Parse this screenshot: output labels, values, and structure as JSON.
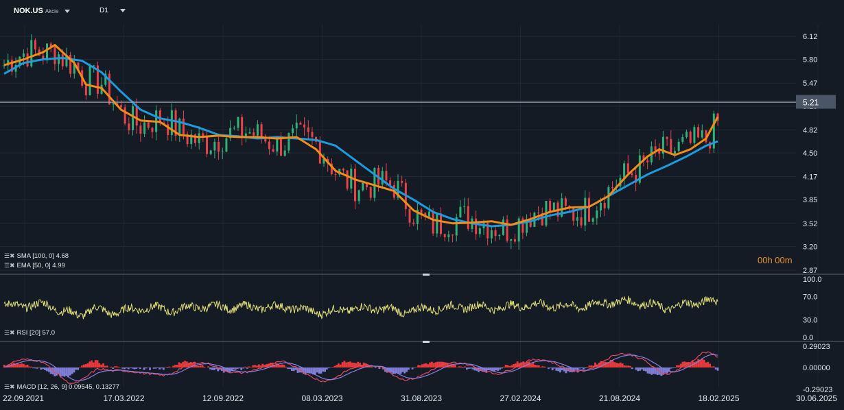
{
  "header": {
    "symbol": "NOK.US",
    "type": "Akcie",
    "timeframe": "D1"
  },
  "current_price_label": "5.21",
  "timer": "00h 00m",
  "colors": {
    "background": "#141b24",
    "sma": "#1e9be0",
    "ema": "#f08c1a",
    "rsi": "#e3e07a",
    "macd_hist_pos": "#e83a3a",
    "macd_hist_neg": "#7e7ed6",
    "up_candle": "#33b07a",
    "down_candle": "#e8434a"
  },
  "indicators": {
    "sma_label": "SMA [100,  0]  4.68",
    "ema_label": "EMA [50,  0]  4.99",
    "rsi_label": "RSI [20]  57.0",
    "macd_label": "MACD [12,  26,  9]  0.09545,  0.13277"
  },
  "chart_data": [
    {
      "type": "candlestick",
      "title": "NOK.US",
      "x_tick_labels": [
        "22.09.2021",
        "17.03.2022",
        "12.09.2022",
        "08.03.2023",
        "31.08.2023",
        "27.02.2024",
        "21.08.2024",
        "18.02.2025",
        "30.06.2025"
      ],
      "y_tick_labels": [
        "6.12",
        "5.80",
        "5.47",
        "5.15",
        "4.82",
        "4.50",
        "4.17",
        "3.85",
        "3.52",
        "3.20",
        "2.87"
      ],
      "ylim": [
        2.87,
        6.4
      ],
      "last_price": 5.21,
      "sma_100": [
        [
          0,
          5.6
        ],
        [
          5,
          5.75
        ],
        [
          10,
          5.8
        ],
        [
          15,
          5.82
        ],
        [
          20,
          5.78
        ],
        [
          25,
          5.62
        ],
        [
          30,
          5.35
        ],
        [
          35,
          5.1
        ],
        [
          40,
          4.98
        ],
        [
          45,
          4.93
        ],
        [
          50,
          4.85
        ],
        [
          55,
          4.75
        ],
        [
          60,
          4.73
        ],
        [
          65,
          4.7
        ],
        [
          70,
          4.72
        ],
        [
          75,
          4.7
        ],
        [
          80,
          4.68
        ],
        [
          85,
          4.6
        ],
        [
          90,
          4.4
        ],
        [
          95,
          4.2
        ],
        [
          100,
          4.0
        ],
        [
          105,
          3.85
        ],
        [
          110,
          3.68
        ],
        [
          115,
          3.58
        ],
        [
          120,
          3.52
        ],
        [
          125,
          3.48
        ],
        [
          130,
          3.5
        ],
        [
          135,
          3.55
        ],
        [
          140,
          3.63
        ],
        [
          145,
          3.68
        ],
        [
          150,
          3.75
        ],
        [
          155,
          3.9
        ],
        [
          160,
          4.05
        ],
        [
          165,
          4.2
        ],
        [
          170,
          4.32
        ],
        [
          175,
          4.45
        ],
        [
          180,
          4.6
        ],
        [
          183,
          4.66
        ]
      ],
      "ema_50": [
        [
          0,
          5.72
        ],
        [
          5,
          5.8
        ],
        [
          10,
          5.9
        ],
        [
          13,
          6.0
        ],
        [
          18,
          5.75
        ],
        [
          21,
          5.45
        ],
        [
          25,
          5.4
        ],
        [
          30,
          5.1
        ],
        [
          35,
          4.95
        ],
        [
          40,
          4.93
        ],
        [
          45,
          4.75
        ],
        [
          50,
          4.72
        ],
        [
          55,
          4.74
        ],
        [
          60,
          4.72
        ],
        [
          65,
          4.72
        ],
        [
          70,
          4.7
        ],
        [
          75,
          4.72
        ],
        [
          80,
          4.55
        ],
        [
          85,
          4.25
        ],
        [
          90,
          4.13
        ],
        [
          95,
          4.05
        ],
        [
          100,
          3.97
        ],
        [
          105,
          3.7
        ],
        [
          110,
          3.57
        ],
        [
          115,
          3.52
        ],
        [
          120,
          3.53
        ],
        [
          125,
          3.55
        ],
        [
          130,
          3.5
        ],
        [
          135,
          3.58
        ],
        [
          140,
          3.68
        ],
        [
          145,
          3.74
        ],
        [
          150,
          3.75
        ],
        [
          155,
          3.9
        ],
        [
          160,
          4.2
        ],
        [
          165,
          4.45
        ],
        [
          168,
          4.55
        ],
        [
          172,
          4.47
        ],
        [
          176,
          4.55
        ],
        [
          180,
          4.7
        ],
        [
          183,
          5.0
        ]
      ],
      "rsi": {
        "ylim": [
          0,
          100
        ],
        "ticks": [
          "100.0",
          "70.0",
          "30.0",
          "0.0"
        ],
        "last": 57.0
      },
      "macd": {
        "params": [
          12,
          26,
          9
        ],
        "values": [
          0.09545,
          0.13277
        ],
        "ticks": [
          "0.29023",
          "0.00000",
          "-0.29023"
        ],
        "ylim": [
          -0.29023,
          0.29023
        ]
      }
    }
  ]
}
